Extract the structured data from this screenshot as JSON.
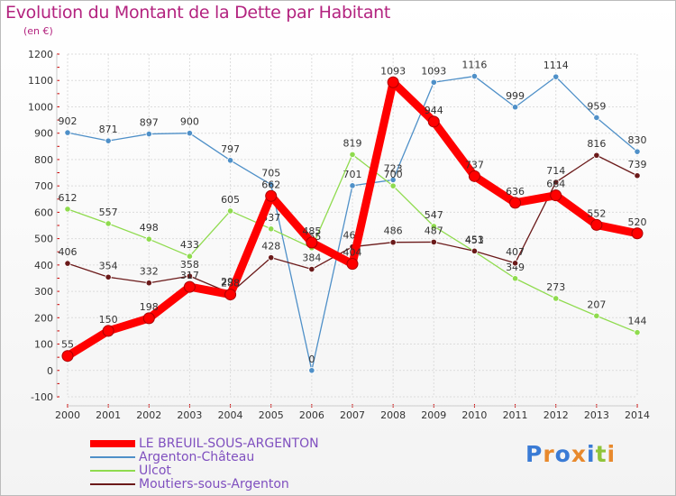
{
  "title": "Evolution du Montant de la Dette par Habitant",
  "subtitle": "(en €)",
  "logo": "Proxiti",
  "chart_data": {
    "type": "line",
    "x": [
      2000,
      2001,
      2002,
      2003,
      2004,
      2005,
      2006,
      2007,
      2008,
      2009,
      2010,
      2011,
      2012,
      2013,
      2014
    ],
    "ylim": [
      -100,
      1200
    ],
    "yticks": [
      -100,
      0,
      100,
      200,
      300,
      400,
      500,
      600,
      700,
      800,
      900,
      1000,
      1100,
      1200
    ],
    "grid": true,
    "legend_position": "bottom-left",
    "series": [
      {
        "name": "Argenton-Château",
        "color": "#4f90c8",
        "values": [
          902,
          871,
          897,
          900,
          797,
          705,
          0,
          701,
          723,
          1093,
          1116,
          999,
          1114,
          959,
          830
        ],
        "labels": [
          "902",
          "871",
          "897",
          "900",
          "797",
          "705",
          "0",
          "701",
          "723",
          "1093",
          "1116",
          "999",
          "1114",
          "959",
          "830"
        ]
      },
      {
        "name": "Ulcot",
        "color": "#8fdb4e",
        "values": [
          612,
          557,
          498,
          433,
          605,
          537,
          465,
          819,
          700,
          547,
          451,
          349,
          273,
          207,
          144
        ],
        "labels": [
          "612",
          "557",
          "498",
          "433",
          "605",
          "537",
          "465",
          "819",
          "700",
          "547",
          "451",
          "349",
          "273",
          "207",
          "144"
        ]
      },
      {
        "name": "Moutiers-sous-Argenton",
        "color": "#6b1a1a",
        "values": [
          406,
          354,
          332,
          358,
          293,
          428,
          384,
          469,
          486,
          487,
          453,
          407,
          714,
          816,
          739
        ],
        "labels": [
          "406",
          "354",
          "332",
          "358",
          "293",
          "428",
          "384",
          "469",
          "486",
          "487",
          "453",
          "407",
          "714",
          "816",
          "739"
        ]
      },
      {
        "name": "LE BREUIL-SOUS-ARGENTON",
        "color": "#ff0000",
        "values": [
          55,
          150,
          198,
          317,
          288,
          662,
          485,
          404,
          1093,
          944,
          737,
          636,
          664,
          552,
          520
        ],
        "labels": [
          "55",
          "150",
          "198",
          "317",
          "288",
          "662",
          "485",
          "404",
          "1093",
          "944",
          "737",
          "636",
          "664",
          "552",
          "520"
        ]
      }
    ]
  },
  "legend": {
    "items": [
      {
        "label": "LE BREUIL-SOUS-ARGENTON",
        "color": "#ff0000"
      },
      {
        "label": "Argenton-Château",
        "color": "#4f90c8"
      },
      {
        "label": "Ulcot",
        "color": "#8fdb4e"
      },
      {
        "label": "Moutiers-sous-Argenton",
        "color": "#6b1a1a"
      }
    ]
  }
}
